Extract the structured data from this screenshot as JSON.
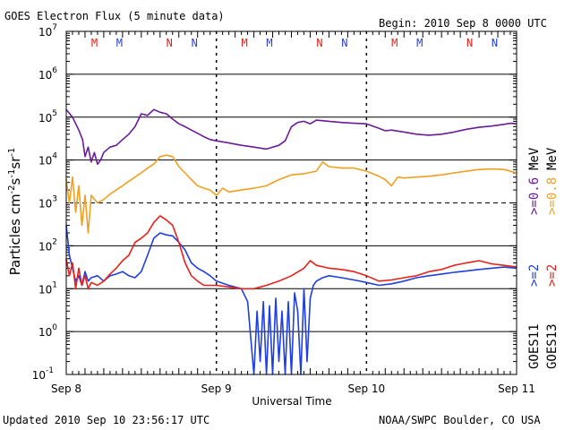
{
  "header": {
    "title": "GOES Electron Flux (5 minute data)",
    "begin": "Begin: 2010 Sep 8 0000 UTC"
  },
  "footer": {
    "updated": "Updated 2010 Sep 10 23:56:17 UTC",
    "credit": "NOAA/SWPC Boulder, CO USA"
  },
  "chart_data": {
    "type": "line",
    "title": "GOES Electron Flux (5 minute data)",
    "xlabel": "Universal Time",
    "ylabel": "Particles cm-2s-1sr-1",
    "yscale": "log",
    "xlim": [
      0,
      72
    ],
    "ylim": [
      0.1,
      10000000
    ],
    "x_tick_labels": [
      {
        "x": 0,
        "label": "Sep 8"
      },
      {
        "x": 24,
        "label": "Sep 9"
      },
      {
        "x": 48,
        "label": "Sep 10"
      },
      {
        "x": 72,
        "label": "Sep 11"
      }
    ],
    "y_ticks": [
      0.1,
      1,
      10,
      100,
      1000,
      10000,
      100000,
      1000000,
      10000000
    ],
    "y_tick_labels": [
      {
        "base": "10",
        "exp": "-1"
      },
      {
        "base": "10",
        "exp": "0"
      },
      {
        "base": "10",
        "exp": "1"
      },
      {
        "base": "10",
        "exp": "2"
      },
      {
        "base": "10",
        "exp": "3"
      },
      {
        "base": "10",
        "exp": "4"
      },
      {
        "base": "10",
        "exp": "5"
      },
      {
        "base": "10",
        "exp": "6"
      },
      {
        "base": "10",
        "exp": "7"
      }
    ],
    "dashed_threshold": 1000,
    "midnight_markers": [
      {
        "x": 4.5,
        "label": "M",
        "color": "#e0201a"
      },
      {
        "x": 8.5,
        "label": "M",
        "color": "#2a3fd6"
      },
      {
        "x": 16.5,
        "label": "N",
        "color": "#e0201a"
      },
      {
        "x": 20.5,
        "label": "N",
        "color": "#2a3fd6"
      },
      {
        "x": 28.5,
        "label": "M",
        "color": "#e0201a"
      },
      {
        "x": 32.5,
        "label": "M",
        "color": "#2a3fd6"
      },
      {
        "x": 40.5,
        "label": "N",
        "color": "#e0201a"
      },
      {
        "x": 44.5,
        "label": "N",
        "color": "#2a3fd6"
      },
      {
        "x": 52.5,
        "label": "M",
        "color": "#e0201a"
      },
      {
        "x": 56.5,
        "label": "M",
        "color": "#2a3fd6"
      },
      {
        "x": 64.5,
        "label": "N",
        "color": "#e0201a"
      },
      {
        "x": 68.5,
        "label": "N",
        "color": "#2a3fd6"
      }
    ],
    "legend": {
      "goes11_label": "GOES11",
      "goes13_label": "GOES13",
      "g11_gt2": ">=2",
      "g11_gt06": ">=0.6",
      "g13_gt2": ">=2",
      "g13_gt08": ">=0.8",
      "unit": "MeV"
    },
    "series": [
      {
        "name": "GOES11 >=0.6 MeV",
        "color": "#6a1b9a",
        "x": [
          0,
          1,
          2,
          2.6,
          3,
          3.5,
          4,
          4.5,
          5,
          5.5,
          6,
          7,
          8,
          9,
          10,
          11,
          12,
          13,
          14,
          15,
          16,
          17,
          18,
          19,
          20,
          21,
          22,
          23,
          24,
          26,
          28,
          30,
          32,
          34,
          35,
          36,
          37,
          38,
          39,
          40,
          42,
          44,
          46,
          48,
          50,
          51,
          52,
          54,
          56,
          58,
          60,
          62,
          64,
          66,
          68,
          70,
          71,
          72
        ],
        "y": [
          150000,
          100000,
          50000,
          30000,
          12000,
          20000,
          9000,
          15000,
          8000,
          10000,
          15000,
          20000,
          22000,
          30000,
          40000,
          60000,
          120000,
          110000,
          150000,
          130000,
          120000,
          90000,
          70000,
          60000,
          50000,
          42000,
          35000,
          30000,
          28000,
          25000,
          22000,
          20000,
          18000,
          22000,
          28000,
          60000,
          75000,
          80000,
          70000,
          85000,
          80000,
          75000,
          72000,
          70000,
          55000,
          48000,
          50000,
          45000,
          40000,
          38000,
          40000,
          45000,
          52000,
          58000,
          62000,
          68000,
          72000,
          70000
        ]
      },
      {
        "name": "GOES13 >=0.8 MeV",
        "color": "#f0a020",
        "x": [
          0,
          0.5,
          1,
          1.5,
          2,
          2.5,
          3,
          3.5,
          4,
          5,
          6,
          7,
          8,
          9,
          10,
          11,
          12,
          13,
          14,
          15,
          16,
          17,
          18,
          19,
          20,
          21,
          22,
          23,
          24,
          25,
          26,
          28,
          30,
          32,
          34,
          36,
          38,
          40,
          41,
          42,
          44,
          46,
          48,
          50,
          51,
          52,
          53,
          54,
          56,
          58,
          60,
          62,
          64,
          66,
          68,
          70,
          72
        ],
        "y": [
          3500,
          1000,
          4000,
          600,
          2500,
          300,
          1500,
          200,
          1500,
          1000,
          1200,
          1600,
          2000,
          2500,
          3200,
          4000,
          5000,
          6500,
          8000,
          12000,
          13000,
          12000,
          7000,
          5000,
          3500,
          2500,
          2200,
          2000,
          1500,
          2200,
          1800,
          2000,
          2200,
          2500,
          3500,
          4500,
          4800,
          5500,
          9000,
          7000,
          6500,
          6500,
          5500,
          4200,
          3500,
          2500,
          4000,
          3800,
          4000,
          4200,
          4500,
          5000,
          5500,
          6000,
          6200,
          6000,
          5000
        ]
      },
      {
        "name": "GOES11 >=2 MeV",
        "color": "#1f3fe0",
        "x": [
          0,
          0.5,
          1,
          1.5,
          2,
          2.5,
          3,
          3.5,
          4,
          5,
          6,
          7,
          8,
          9,
          10,
          11,
          12,
          13,
          14,
          15,
          16,
          17,
          18,
          19,
          20,
          21,
          22,
          23,
          24,
          26,
          28,
          29,
          30,
          30.5,
          31,
          31.5,
          32,
          32.5,
          33,
          33.5,
          34,
          34.5,
          35,
          35.5,
          36,
          36.5,
          37,
          37.5,
          38,
          38.5,
          39,
          39.5,
          40,
          41,
          42,
          44,
          46,
          48,
          50,
          52,
          54,
          56,
          58,
          60,
          62,
          64,
          66,
          68,
          70,
          72
        ],
        "y": [
          300,
          60,
          30,
          15,
          20,
          12,
          25,
          15,
          18,
          20,
          15,
          20,
          22,
          25,
          20,
          18,
          25,
          60,
          150,
          200,
          180,
          170,
          120,
          80,
          40,
          30,
          25,
          20,
          15,
          12,
          10,
          5,
          0.1,
          3,
          0.2,
          5,
          0.1,
          4,
          0.1,
          6,
          0.2,
          3,
          0.1,
          5,
          0.1,
          8,
          3,
          0.1,
          10,
          0.2,
          6,
          12,
          15,
          18,
          20,
          18,
          16,
          14,
          12,
          13,
          15,
          18,
          20,
          22,
          24,
          26,
          28,
          30,
          32,
          30
        ]
      },
      {
        "name": "GOES13 >=2 MeV",
        "color": "#e8201a",
        "x": [
          0,
          0.5,
          1,
          1.5,
          2,
          2.5,
          3,
          3.5,
          4,
          5,
          6,
          7,
          8,
          9,
          10,
          11,
          12,
          13,
          14,
          15,
          16,
          17,
          18,
          19,
          20,
          21,
          22,
          24,
          26,
          28,
          30,
          32,
          34,
          36,
          38,
          39,
          40,
          42,
          44,
          46,
          48,
          50,
          52,
          54,
          56,
          58,
          60,
          62,
          64,
          66,
          68,
          70,
          72
        ],
        "y": [
          50,
          20,
          40,
          10,
          30,
          12,
          20,
          10,
          14,
          12,
          15,
          22,
          30,
          45,
          60,
          120,
          150,
          200,
          350,
          500,
          400,
          300,
          120,
          40,
          20,
          15,
          12,
          12,
          11,
          10,
          10,
          12,
          15,
          20,
          30,
          45,
          35,
          30,
          28,
          25,
          20,
          15,
          16,
          18,
          20,
          25,
          28,
          35,
          40,
          45,
          38,
          35,
          32
        ]
      }
    ]
  }
}
